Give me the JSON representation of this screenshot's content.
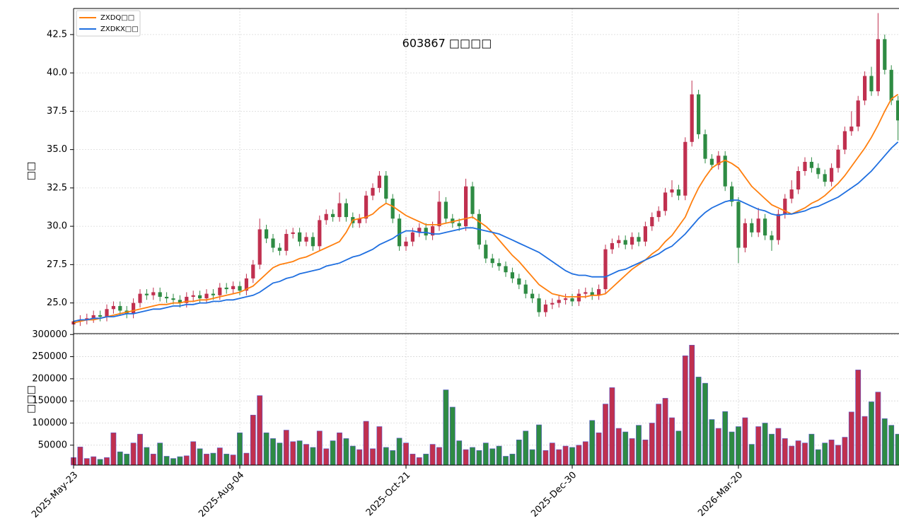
{
  "chart_data": {
    "type": "candlestick",
    "title": "603867 □□□□",
    "ylabel": "□□",
    "up_color": "#c0304f",
    "down_color": "#2e8b43",
    "grid": true,
    "legend": "upper left",
    "categories": [
      "2025-May-23",
      null,
      null,
      null,
      null,
      null,
      null,
      null,
      null,
      null,
      null,
      null,
      null,
      null,
      null,
      null,
      null,
      null,
      null,
      null,
      null,
      null,
      null,
      null,
      null,
      "2025-Aug-04",
      null,
      null,
      null,
      null,
      null,
      null,
      null,
      null,
      null,
      null,
      null,
      null,
      null,
      null,
      null,
      null,
      null,
      null,
      null,
      null,
      null,
      null,
      null,
      null,
      "2025-Oct-21",
      null,
      null,
      null,
      null,
      null,
      null,
      null,
      null,
      null,
      null,
      null,
      null,
      null,
      null,
      null,
      null,
      null,
      null,
      null,
      null,
      null,
      null,
      null,
      null,
      "2025-Dec-30",
      null,
      null,
      null,
      null,
      null,
      null,
      null,
      null,
      null,
      null,
      null,
      null,
      null,
      null,
      null,
      null,
      null,
      null,
      null,
      null,
      null,
      null,
      null,
      null,
      "2026-Mar-20",
      null,
      null,
      null,
      null,
      null,
      null,
      null,
      null,
      null,
      null,
      null,
      null,
      null,
      null,
      null,
      null,
      null,
      null,
      null,
      null,
      null,
      null,
      null,
      null
    ],
    "open": [
      23.6,
      23.8,
      23.9,
      24.0,
      24.2,
      24.1,
      24.6,
      24.8,
      24.5,
      24.3,
      25.0,
      25.6,
      25.5,
      25.7,
      25.4,
      25.3,
      25.2,
      25.0,
      25.4,
      25.5,
      25.3,
      25.6,
      25.5,
      26.0,
      25.9,
      26.1,
      25.8,
      26.6,
      27.5,
      29.8,
      29.2,
      28.6,
      28.4,
      29.5,
      29.6,
      29.0,
      29.3,
      28.7,
      30.4,
      30.8,
      30.6,
      31.5,
      30.6,
      30.2,
      30.5,
      32.0,
      32.5,
      33.3,
      31.8,
      30.5,
      28.7,
      29.0,
      29.6,
      29.9,
      29.4,
      30.0,
      31.6,
      30.5,
      30.2,
      30.0,
      32.6,
      30.8,
      28.8,
      27.9,
      27.6,
      27.4,
      27.0,
      26.6,
      26.2,
      25.6,
      25.3,
      24.4,
      24.9,
      25.0,
      25.2,
      25.3,
      25.1,
      25.6,
      25.7,
      25.5,
      25.9,
      28.5,
      28.9,
      29.1,
      28.8,
      29.3,
      29.0,
      30.0,
      30.6,
      31.0,
      32.2,
      32.4,
      32.0,
      35.5,
      38.6,
      36.0,
      34.4,
      34.0,
      34.6,
      32.6,
      31.6,
      28.6,
      30.2,
      29.6,
      30.5,
      29.4,
      29.1,
      30.8,
      31.8,
      32.4,
      33.6,
      34.2,
      33.8,
      33.4,
      32.9,
      33.8,
      35.0,
      36.2,
      36.5,
      38.2,
      39.8,
      38.8,
      42.2,
      40.2,
      38.2
    ],
    "high": [
      24.1,
      24.2,
      24.3,
      24.5,
      24.5,
      24.9,
      25.1,
      25.1,
      24.8,
      25.3,
      25.9,
      25.9,
      26.0,
      26.0,
      25.7,
      25.6,
      25.5,
      25.7,
      25.8,
      25.8,
      25.9,
      25.9,
      26.3,
      26.3,
      26.4,
      26.4,
      26.9,
      27.8,
      30.5,
      30.1,
      29.5,
      28.9,
      29.8,
      29.9,
      29.9,
      29.6,
      29.6,
      30.7,
      31.1,
      31.1,
      32.2,
      31.8,
      30.9,
      30.8,
      32.3,
      32.8,
      33.6,
      33.6,
      32.1,
      30.8,
      29.3,
      29.9,
      30.2,
      30.2,
      30.3,
      32.3,
      31.9,
      30.8,
      30.5,
      33.1,
      32.9,
      31.1,
      29.1,
      28.2,
      27.9,
      27.7,
      27.3,
      26.9,
      26.5,
      25.9,
      25.6,
      25.2,
      25.3,
      25.5,
      25.6,
      25.6,
      25.9,
      26.0,
      26.0,
      26.2,
      28.8,
      29.2,
      29.4,
      29.4,
      29.6,
      29.6,
      30.3,
      30.9,
      31.3,
      32.5,
      33.0,
      32.7,
      35.8,
      39.5,
      38.9,
      36.3,
      34.7,
      34.9,
      34.9,
      32.9,
      31.9,
      30.5,
      30.5,
      31.2,
      30.8,
      29.7,
      31.1,
      32.1,
      33.0,
      33.9,
      34.5,
      34.5,
      34.1,
      33.7,
      34.1,
      35.3,
      36.5,
      37.5,
      38.5,
      40.1,
      40.4,
      43.9,
      42.5,
      40.5,
      38.5
    ],
    "low": [
      23.3,
      23.5,
      23.6,
      23.7,
      23.8,
      23.8,
      24.3,
      24.2,
      24.0,
      24.0,
      24.7,
      25.2,
      25.2,
      25.1,
      25.0,
      24.9,
      24.7,
      24.7,
      25.1,
      25.0,
      25.0,
      25.2,
      25.2,
      25.6,
      25.6,
      25.5,
      25.5,
      26.3,
      27.2,
      28.9,
      28.3,
      28.1,
      28.1,
      29.2,
      28.7,
      28.7,
      28.4,
      28.4,
      30.1,
      30.3,
      30.3,
      30.3,
      29.9,
      29.9,
      30.2,
      31.7,
      32.2,
      31.5,
      30.2,
      28.4,
      28.4,
      28.7,
      29.3,
      29.1,
      29.1,
      29.7,
      30.2,
      29.9,
      29.7,
      29.7,
      30.5,
      28.5,
      27.6,
      27.3,
      27.1,
      26.7,
      26.3,
      25.9,
      25.3,
      25.0,
      24.1,
      24.1,
      24.6,
      24.7,
      24.9,
      24.8,
      24.8,
      25.3,
      25.2,
      25.2,
      25.6,
      28.2,
      28.6,
      28.5,
      28.5,
      28.7,
      28.7,
      29.7,
      30.3,
      30.7,
      31.9,
      31.7,
      31.7,
      35.2,
      35.7,
      34.1,
      33.7,
      33.7,
      32.3,
      31.3,
      27.6,
      28.3,
      29.3,
      29.3,
      29.1,
      28.4,
      28.8,
      30.5,
      31.5,
      32.1,
      33.3,
      33.5,
      33.1,
      32.6,
      32.6,
      33.5,
      34.7,
      35.9,
      36.2,
      37.9,
      38.5,
      38.5,
      39.9,
      37.9,
      35.6
    ],
    "close": [
      23.8,
      23.9,
      24.0,
      24.2,
      24.1,
      24.6,
      24.8,
      24.5,
      24.3,
      25.0,
      25.6,
      25.5,
      25.7,
      25.4,
      25.3,
      25.2,
      25.0,
      25.4,
      25.5,
      25.3,
      25.6,
      25.5,
      26.0,
      25.9,
      26.1,
      25.8,
      26.6,
      27.5,
      29.8,
      29.2,
      28.6,
      28.4,
      29.5,
      29.6,
      29.0,
      29.3,
      28.7,
      30.4,
      30.8,
      30.6,
      31.5,
      30.6,
      30.2,
      30.5,
      32.0,
      32.5,
      33.3,
      31.8,
      30.5,
      28.7,
      29.0,
      29.6,
      29.9,
      29.4,
      30.0,
      31.6,
      30.5,
      30.2,
      30.0,
      32.6,
      30.8,
      28.8,
      27.9,
      27.6,
      27.4,
      27.0,
      26.6,
      26.2,
      25.6,
      25.3,
      24.4,
      24.9,
      25.0,
      25.2,
      25.3,
      25.1,
      25.6,
      25.7,
      25.5,
      25.9,
      28.5,
      28.9,
      29.1,
      28.8,
      29.3,
      29.0,
      30.0,
      30.6,
      31.0,
      32.2,
      32.4,
      32.0,
      35.5,
      38.6,
      36.0,
      34.4,
      34.0,
      34.6,
      32.6,
      31.6,
      28.6,
      30.2,
      29.6,
      30.5,
      29.4,
      29.1,
      30.8,
      31.8,
      32.4,
      33.6,
      34.2,
      33.8,
      33.4,
      32.9,
      33.8,
      35.0,
      36.2,
      36.5,
      38.2,
      39.8,
      38.8,
      42.2,
      40.2,
      38.2,
      36.9
    ],
    "series": [
      {
        "name": "ZXDQ□□",
        "color": "#ff7f0e",
        "values": [
          23.7,
          23.8,
          23.9,
          23.9,
          24.0,
          24.1,
          24.2,
          24.3,
          24.4,
          24.5,
          24.6,
          24.7,
          24.8,
          24.9,
          24.9,
          25.0,
          25.0,
          25.1,
          25.1,
          25.2,
          25.2,
          25.3,
          25.4,
          25.5,
          25.6,
          25.7,
          25.9,
          26.1,
          26.5,
          26.9,
          27.3,
          27.5,
          27.6,
          27.7,
          27.9,
          28.0,
          28.2,
          28.4,
          28.6,
          28.8,
          29.0,
          29.6,
          30.4,
          30.5,
          30.6,
          30.8,
          31.2,
          31.5,
          31.3,
          31.0,
          30.7,
          30.5,
          30.3,
          30.1,
          30.1,
          30.1,
          30.2,
          30.3,
          30.4,
          30.5,
          30.6,
          30.3,
          30.0,
          29.6,
          29.1,
          28.6,
          28.1,
          27.7,
          27.2,
          26.7,
          26.2,
          25.9,
          25.6,
          25.5,
          25.4,
          25.4,
          25.4,
          25.4,
          25.5,
          25.5,
          25.6,
          26.0,
          26.4,
          26.8,
          27.2,
          27.5,
          27.8,
          28.2,
          28.5,
          29.0,
          29.4,
          30.0,
          30.6,
          31.6,
          32.5,
          33.2,
          33.8,
          34.1,
          34.3,
          34.1,
          33.8,
          33.2,
          32.6,
          32.2,
          31.8,
          31.4,
          31.2,
          31.0,
          30.8,
          31.0,
          31.2,
          31.5,
          31.7,
          32.0,
          32.4,
          32.8,
          33.3,
          33.9,
          34.5,
          35.1,
          35.8,
          36.6,
          37.5,
          38.3,
          38.6
        ]
      },
      {
        "name": "ZXDKX□□",
        "color": "#1f6fe0",
        "values": [
          23.8,
          23.9,
          23.9,
          24.0,
          24.0,
          24.1,
          24.1,
          24.2,
          24.3,
          24.3,
          24.4,
          24.5,
          24.6,
          24.6,
          24.7,
          24.8,
          24.8,
          24.9,
          24.9,
          25.0,
          25.0,
          25.1,
          25.1,
          25.2,
          25.2,
          25.3,
          25.4,
          25.5,
          25.7,
          26.0,
          26.3,
          26.4,
          26.6,
          26.7,
          26.9,
          27.0,
          27.1,
          27.2,
          27.4,
          27.5,
          27.6,
          27.8,
          28.0,
          28.1,
          28.3,
          28.5,
          28.8,
          29.0,
          29.2,
          29.5,
          29.7,
          29.7,
          29.6,
          29.6,
          29.5,
          29.5,
          29.6,
          29.7,
          29.8,
          29.9,
          29.9,
          29.8,
          29.7,
          29.6,
          29.5,
          29.3,
          29.1,
          28.9,
          28.7,
          28.5,
          28.3,
          28.0,
          27.7,
          27.4,
          27.1,
          26.9,
          26.8,
          26.8,
          26.7,
          26.7,
          26.7,
          26.9,
          27.1,
          27.2,
          27.4,
          27.6,
          27.8,
          28.0,
          28.2,
          28.5,
          28.7,
          29.1,
          29.5,
          30.0,
          30.5,
          30.9,
          31.2,
          31.4,
          31.6,
          31.7,
          31.7,
          31.5,
          31.3,
          31.1,
          31.0,
          30.8,
          30.7,
          30.8,
          30.8,
          30.9,
          31.0,
          31.2,
          31.3,
          31.5,
          31.7,
          31.9,
          32.2,
          32.5,
          32.8,
          33.2,
          33.6,
          34.1,
          34.6,
          35.1,
          35.5
        ]
      }
    ],
    "ylim": [
      23.0,
      44.2
    ],
    "yticks": [
      {
        "value": 25,
        "label": "25.0"
      },
      {
        "value": 27.5,
        "label": "27.5"
      },
      {
        "value": 30,
        "label": "30.0"
      },
      {
        "value": 32.5,
        "label": "32.5"
      },
      {
        "value": 35,
        "label": "35.0"
      },
      {
        "value": 37.5,
        "label": "37.5"
      },
      {
        "value": 40,
        "label": "40.0"
      },
      {
        "value": 42.5,
        "label": "42.5"
      }
    ],
    "volume": {
      "ylabel": "□□□",
      "ylim": [
        5000,
        302000
      ],
      "yticks": [
        50000,
        100000,
        150000,
        200000,
        250000,
        300000
      ],
      "values": [
        22000,
        46000,
        20000,
        24000,
        18000,
        22000,
        78000,
        35000,
        30000,
        55000,
        75000,
        45000,
        30000,
        55000,
        25000,
        20000,
        24000,
        26000,
        58000,
        42000,
        30000,
        32000,
        44000,
        30000,
        28000,
        78000,
        32000,
        118000,
        162000,
        78000,
        65000,
        55000,
        84000,
        58000,
        60000,
        52000,
        45000,
        82000,
        42000,
        60000,
        78000,
        65000,
        48000,
        40000,
        104000,
        42000,
        92000,
        45000,
        38000,
        66000,
        55000,
        30000,
        22000,
        30000,
        52000,
        45000,
        175000,
        136000,
        60000,
        40000,
        45000,
        38000,
        55000,
        42000,
        48000,
        25000,
        30000,
        62000,
        82000,
        40000,
        96000,
        38000,
        55000,
        40000,
        48000,
        45000,
        50000,
        58000,
        106000,
        78000,
        143000,
        180000,
        88000,
        80000,
        65000,
        95000,
        62000,
        100000,
        143000,
        156000,
        112000,
        82000,
        252000,
        276000,
        204000,
        190000,
        108000,
        88000,
        126000,
        80000,
        92000,
        112000,
        52000,
        92000,
        100000,
        75000,
        88000,
        65000,
        48000,
        60000,
        55000,
        75000,
        40000,
        55000,
        62000,
        50000,
        68000,
        125000,
        220000,
        115000,
        148000,
        170000,
        110000,
        95000,
        75000
      ]
    }
  }
}
